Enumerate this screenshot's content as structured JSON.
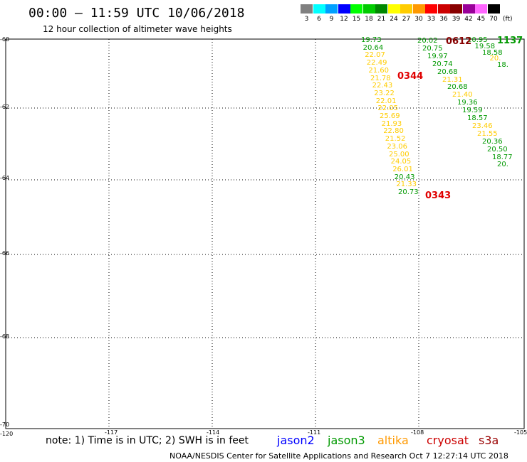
{
  "title": "00:00 – 11:59 UTC 10/06/2018",
  "subtitle": "12 hour collection of altimeter wave heights",
  "credit": "NOAA/NESDIS Center for Satellite Applications and Research   Oct  7 12:27:14 UTC 2018",
  "note": "note:  1) Time is in UTC;  2) SWH is in feet",
  "satellites": [
    {
      "name": "jason2",
      "color": "#0000ff"
    },
    {
      "name": "jason3",
      "color": "#009900"
    },
    {
      "name": "altika",
      "color": "#ff9900"
    },
    {
      "name": "cryosat",
      "color": "#cc0000"
    },
    {
      "name": "s3a",
      "color": "#990000"
    }
  ],
  "scale": {
    "unit": "(ft)",
    "bins": [
      {
        "label": "3",
        "color": "#808080"
      },
      {
        "label": "6",
        "color": "#00ffff"
      },
      {
        "label": "9",
        "color": "#00a0ff"
      },
      {
        "label": "12",
        "color": "#0000ff"
      },
      {
        "label": "15",
        "color": "#00ff00"
      },
      {
        "label": "18",
        "color": "#00cc00"
      },
      {
        "label": "21",
        "color": "#008800"
      },
      {
        "label": "24",
        "color": "#ffff00"
      },
      {
        "label": "27",
        "color": "#ffcc00"
      },
      {
        "label": "30",
        "color": "#ff9900"
      },
      {
        "label": "33",
        "color": "#ff0000"
      },
      {
        "label": "36",
        "color": "#cc0000"
      },
      {
        "label": "39",
        "color": "#880000"
      },
      {
        "label": "42",
        "color": "#990099"
      },
      {
        "label": "45",
        "color": "#ff66ff"
      },
      {
        "label": "70",
        "color": "#000000"
      }
    ]
  },
  "axes": {
    "lon_labels": [
      "-120",
      "-117",
      "-114",
      "-111",
      "-108",
      "-105"
    ],
    "lat_labels": [
      "-60",
      "-62",
      "-64",
      "-66",
      "-68",
      "-70"
    ]
  },
  "track1": [
    {
      "v": "19.73",
      "c": "#009900"
    },
    {
      "v": "20.64",
      "c": "#009900"
    },
    {
      "v": "22.07",
      "c": "#ffcc00"
    },
    {
      "v": "22.49",
      "c": "#ffcc00"
    },
    {
      "v": "21.60",
      "c": "#ffcc00"
    },
    {
      "v": "21.78",
      "c": "#ffcc00"
    },
    {
      "v": "22.43",
      "c": "#ffcc00"
    },
    {
      "v": "23.22",
      "c": "#ffcc00"
    },
    {
      "v": "22.01",
      "c": "#ffcc00"
    },
    {
      "v": "22.05",
      "c": "#ffcc00"
    },
    {
      "v": "25.69",
      "c": "#ffcc00"
    },
    {
      "v": "21.93",
      "c": "#ffcc00"
    },
    {
      "v": "22.80",
      "c": "#ffcc00"
    },
    {
      "v": "21.52",
      "c": "#ffcc00"
    },
    {
      "v": "23.06",
      "c": "#ffcc00"
    },
    {
      "v": "25.00",
      "c": "#ffcc00"
    },
    {
      "v": "24.05",
      "c": "#ffcc00"
    },
    {
      "v": "26.01",
      "c": "#ffcc00"
    },
    {
      "v": "20.43",
      "c": "#009900"
    },
    {
      "v": "21.33",
      "c": "#ffcc00"
    },
    {
      "v": "20.73",
      "c": "#009900"
    }
  ],
  "track2": [
    {
      "v": "20.02",
      "c": "#009900"
    },
    {
      "v": "20.75",
      "c": "#009900"
    },
    {
      "v": "19.97",
      "c": "#009900"
    },
    {
      "v": "20.74",
      "c": "#009900"
    },
    {
      "v": "20.68",
      "c": "#009900"
    },
    {
      "v": "21.31",
      "c": "#ffcc00"
    },
    {
      "v": "20.68",
      "c": "#009900"
    },
    {
      "v": "21.40",
      "c": "#ffcc00"
    },
    {
      "v": "19.36",
      "c": "#009900"
    },
    {
      "v": "19.59",
      "c": "#009900"
    },
    {
      "v": "18.57",
      "c": "#009900"
    },
    {
      "v": "23.46",
      "c": "#ffcc00"
    },
    {
      "v": "21.55",
      "c": "#ffcc00"
    },
    {
      "v": "20.36",
      "c": "#009900"
    },
    {
      "v": "20.50",
      "c": "#009900"
    },
    {
      "v": "18.77",
      "c": "#009900"
    },
    {
      "v": "20.",
      "c": "#009900"
    }
  ],
  "track3": [
    {
      "v": "20.95",
      "c": "#009900"
    },
    {
      "v": "19.58",
      "c": "#009900"
    },
    {
      "v": "18.58",
      "c": "#009900"
    },
    {
      "v": "20.",
      "c": "#ffcc00"
    },
    {
      "v": "18.",
      "c": "#009900"
    }
  ],
  "times": [
    {
      "v": "0344",
      "c": "#e00000"
    },
    {
      "v": "0343",
      "c": "#e00000"
    },
    {
      "v": "0612",
      "c": "#880000"
    },
    {
      "v": "1137",
      "c": "#009900"
    }
  ]
}
